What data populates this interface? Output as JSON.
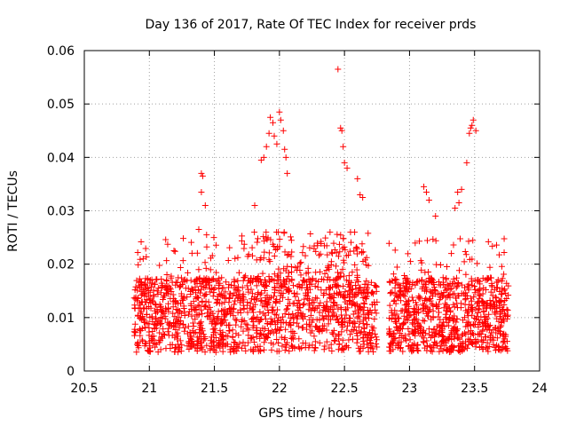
{
  "chart_data": {
    "type": "scatter",
    "title": "Day 136 of 2017, Rate Of TEC Index for receiver prds",
    "xlabel": "GPS time / hours",
    "ylabel": "ROTI / TECUs",
    "xlim": [
      20.5,
      24
    ],
    "ylim": [
      0,
      0.06
    ],
    "grid": true,
    "marker": "+",
    "color": "#ff0000",
    "x_ticks": [
      20.5,
      21,
      21.5,
      22,
      22.5,
      23,
      23.5,
      24
    ],
    "x_tick_labels": [
      "20.5",
      "21",
      "21.5",
      "22",
      "22.5",
      "23",
      "23.5",
      "24"
    ],
    "y_ticks": [
      0,
      0.01,
      0.02,
      0.03,
      0.04,
      0.05,
      0.06
    ],
    "y_tick_labels": [
      "0",
      "0.01",
      "0.02",
      "0.03",
      "0.04",
      "0.05",
      "0.06"
    ],
    "highlights": [
      {
        "x": 21.4,
        "y": 0.037
      },
      {
        "x": 21.41,
        "y": 0.0365
      },
      {
        "x": 21.4,
        "y": 0.0335
      },
      {
        "x": 21.43,
        "y": 0.031
      },
      {
        "x": 21.38,
        "y": 0.0265
      },
      {
        "x": 21.44,
        "y": 0.0255
      },
      {
        "x": 21.81,
        "y": 0.031
      },
      {
        "x": 21.86,
        "y": 0.0395
      },
      {
        "x": 21.88,
        "y": 0.04
      },
      {
        "x": 21.9,
        "y": 0.042
      },
      {
        "x": 21.92,
        "y": 0.0445
      },
      {
        "x": 21.93,
        "y": 0.0475
      },
      {
        "x": 21.95,
        "y": 0.0465
      },
      {
        "x": 21.96,
        "y": 0.044
      },
      {
        "x": 21.98,
        "y": 0.0425
      },
      {
        "x": 22.0,
        "y": 0.0485
      },
      {
        "x": 22.01,
        "y": 0.047
      },
      {
        "x": 22.03,
        "y": 0.045
      },
      {
        "x": 22.04,
        "y": 0.0415
      },
      {
        "x": 22.05,
        "y": 0.04
      },
      {
        "x": 22.06,
        "y": 0.037
      },
      {
        "x": 22.45,
        "y": 0.0565
      },
      {
        "x": 22.47,
        "y": 0.0455
      },
      {
        "x": 22.48,
        "y": 0.045
      },
      {
        "x": 22.49,
        "y": 0.042
      },
      {
        "x": 22.5,
        "y": 0.039
      },
      {
        "x": 22.52,
        "y": 0.038
      },
      {
        "x": 22.6,
        "y": 0.036
      },
      {
        "x": 22.62,
        "y": 0.033
      },
      {
        "x": 22.64,
        "y": 0.0325
      },
      {
        "x": 23.11,
        "y": 0.0345
      },
      {
        "x": 23.13,
        "y": 0.0335
      },
      {
        "x": 23.15,
        "y": 0.032
      },
      {
        "x": 23.2,
        "y": 0.029
      },
      {
        "x": 23.37,
        "y": 0.0335
      },
      {
        "x": 23.4,
        "y": 0.034
      },
      {
        "x": 23.38,
        "y": 0.0315
      },
      {
        "x": 23.44,
        "y": 0.039
      },
      {
        "x": 23.46,
        "y": 0.0445
      },
      {
        "x": 23.47,
        "y": 0.0455
      },
      {
        "x": 23.48,
        "y": 0.046
      },
      {
        "x": 23.49,
        "y": 0.047
      },
      {
        "x": 23.51,
        "y": 0.045
      },
      {
        "x": 23.35,
        "y": 0.0305
      }
    ]
  }
}
